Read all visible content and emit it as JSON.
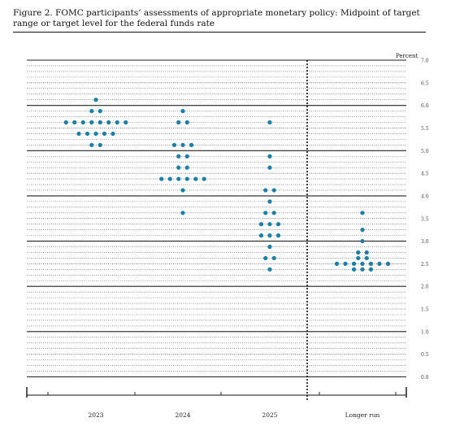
{
  "figure": {
    "title": "Figure 2.  FOMC participants’ assessments of appropriate monetary policy:  Midpoint of target range or target level for the federal funds rate"
  },
  "chart_data": {
    "type": "scatter",
    "style": "dot-plot",
    "title": "Figure 2.  FOMC participants’ assessments of appropriate monetary policy:  Midpoint of target range or target level for the federal funds rate",
    "ylabel": "Percent",
    "ylim": [
      0,
      7
    ],
    "yticks": [
      "0.0",
      "0.5",
      "1.0",
      "1.5",
      "2.0",
      "2.5",
      "3.0",
      "3.5",
      "4.0",
      "4.5",
      "5.0",
      "5.5",
      "6.0",
      "6.5",
      "7.0"
    ],
    "categories": [
      "2023",
      "2024",
      "2025",
      "Longer run"
    ],
    "grid": true,
    "separator_before": "Longer run",
    "dot_color": "#1a7fa6",
    "series": [
      {
        "category": "2023",
        "points": [
          {
            "y": 6.125,
            "count": 1
          },
          {
            "y": 5.875,
            "count": 2
          },
          {
            "y": 5.625,
            "count": 8
          },
          {
            "y": 5.375,
            "count": 5
          },
          {
            "y": 5.125,
            "count": 2
          }
        ]
      },
      {
        "category": "2024",
        "points": [
          {
            "y": 5.875,
            "count": 1
          },
          {
            "y": 5.625,
            "count": 2
          },
          {
            "y": 5.125,
            "count": 3
          },
          {
            "y": 4.875,
            "count": 2
          },
          {
            "y": 4.625,
            "count": 2
          },
          {
            "y": 4.375,
            "count": 6
          },
          {
            "y": 4.125,
            "count": 1
          },
          {
            "y": 3.625,
            "count": 1
          }
        ]
      },
      {
        "category": "2025",
        "points": [
          {
            "y": 5.625,
            "count": 1
          },
          {
            "y": 4.875,
            "count": 1
          },
          {
            "y": 4.625,
            "count": 1
          },
          {
            "y": 4.125,
            "count": 2
          },
          {
            "y": 3.875,
            "count": 1
          },
          {
            "y": 3.625,
            "count": 2
          },
          {
            "y": 3.375,
            "count": 3
          },
          {
            "y": 3.125,
            "count": 3
          },
          {
            "y": 2.875,
            "count": 1
          },
          {
            "y": 2.625,
            "count": 2
          },
          {
            "y": 2.375,
            "count": 1
          }
        ]
      },
      {
        "category": "Longer run",
        "points": [
          {
            "y": 3.625,
            "count": 1
          },
          {
            "y": 3.25,
            "count": 1
          },
          {
            "y": 3.0,
            "count": 1
          },
          {
            "y": 2.75,
            "count": 2
          },
          {
            "y": 2.625,
            "count": 2
          },
          {
            "y": 2.5,
            "count": 7
          },
          {
            "y": 2.375,
            "count": 3
          }
        ]
      }
    ]
  }
}
